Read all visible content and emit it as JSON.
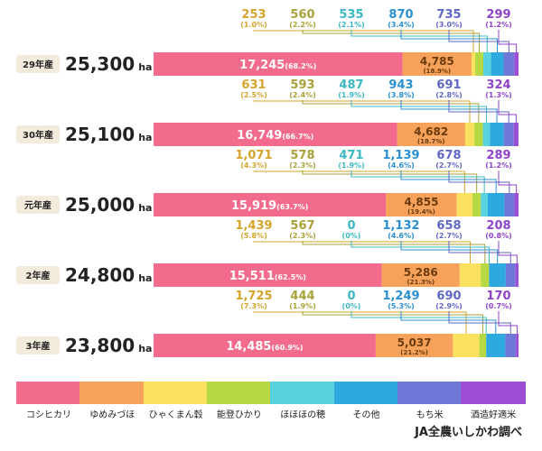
{
  "chart_data": {
    "type": "bar",
    "stacked": true,
    "orientation": "horizontal",
    "area_unit": "ha",
    "categories": [
      "29年産",
      "30年産",
      "元年産",
      "2年産",
      "3年産"
    ],
    "totals": [
      "25,300",
      "25,100",
      "25,000",
      "24,800",
      "23,800"
    ],
    "series": [
      {
        "name": "コシヒカリ",
        "color": "#f26b8c",
        "values": [
          17245,
          16749,
          15919,
          15511,
          14485
        ],
        "labels": [
          "17,245",
          "16,749",
          "15,919",
          "15,511",
          "14,485"
        ],
        "pcts": [
          "(68.2%)",
          "(66.7%)",
          "(63.7%)",
          "(62.5%)",
          "(60.9%)"
        ]
      },
      {
        "name": "ゆめみづほ",
        "color": "#f6a25a",
        "values": [
          4785,
          4682,
          4855,
          5286,
          5037
        ],
        "labels": [
          "4,785",
          "4,682",
          "4,855",
          "5,286",
          "5,037"
        ],
        "pcts": [
          "(18.9%)",
          "(18.7%)",
          "(19.4%)",
          "(21.3%)",
          "(21.2%)"
        ]
      },
      {
        "name": "ひゃくまん穀",
        "color": "#f9e05e",
        "values": [
          253,
          631,
          1071,
          1439,
          1725
        ],
        "labels": [
          "253",
          "631",
          "1,071",
          "1,439",
          "1,725"
        ],
        "pcts": [
          "(1.0%)",
          "(2.5%)",
          "(4.3%)",
          "(5.8%)",
          "(7.3%)"
        ]
      },
      {
        "name": "能登ひかり",
        "color": "#b5d843",
        "values": [
          560,
          593,
          578,
          567,
          444
        ],
        "labels": [
          "560",
          "593",
          "578",
          "567",
          "444"
        ],
        "pcts": [
          "(2.2%)",
          "(2.4%)",
          "(2.3%)",
          "(2.3%)",
          "(1.9%)"
        ]
      },
      {
        "name": "ほほほの穂",
        "color": "#57d2de",
        "values": [
          535,
          487,
          471,
          0,
          0
        ],
        "labels": [
          "535",
          "487",
          "471",
          "0",
          "0"
        ],
        "pcts": [
          "(2.1%)",
          "(1.9%)",
          "(1.9%)",
          "(0%)",
          "(0%)"
        ]
      },
      {
        "name": "その他",
        "color": "#2ea9e0",
        "values": [
          870,
          943,
          1139,
          1132,
          1249
        ],
        "labels": [
          "870",
          "943",
          "1,139",
          "1,132",
          "1,249"
        ],
        "pcts": [
          "(3.4%)",
          "(3.8%)",
          "(4.6%)",
          "(4.6%)",
          "(5.3%)"
        ]
      },
      {
        "name": "もち米",
        "color": "#6f78d6",
        "values": [
          735,
          691,
          678,
          658,
          690
        ],
        "labels": [
          "735",
          "691",
          "678",
          "658",
          "690"
        ],
        "pcts": [
          "(3.0%)",
          "(2.8%)",
          "(2.7%)",
          "(2.7%)",
          "(2.9%)"
        ]
      },
      {
        "name": "酒造好適米",
        "color": "#9c4fd6",
        "values": [
          299,
          324,
          289,
          208,
          170
        ],
        "labels": [
          "299",
          "324",
          "289",
          "208",
          "170"
        ],
        "pcts": [
          "(1.2%)",
          "(1.3%)",
          "(1.2%)",
          "(0.8%)",
          "(0.7%)"
        ]
      }
    ],
    "label_colors": [
      "#d4a52a",
      "#a9a238",
      "#3bb8c2",
      "#2a8fd0",
      "#5f67c4",
      "#8e44c8"
    ]
  },
  "source": "JA全農いしかわ調べ"
}
